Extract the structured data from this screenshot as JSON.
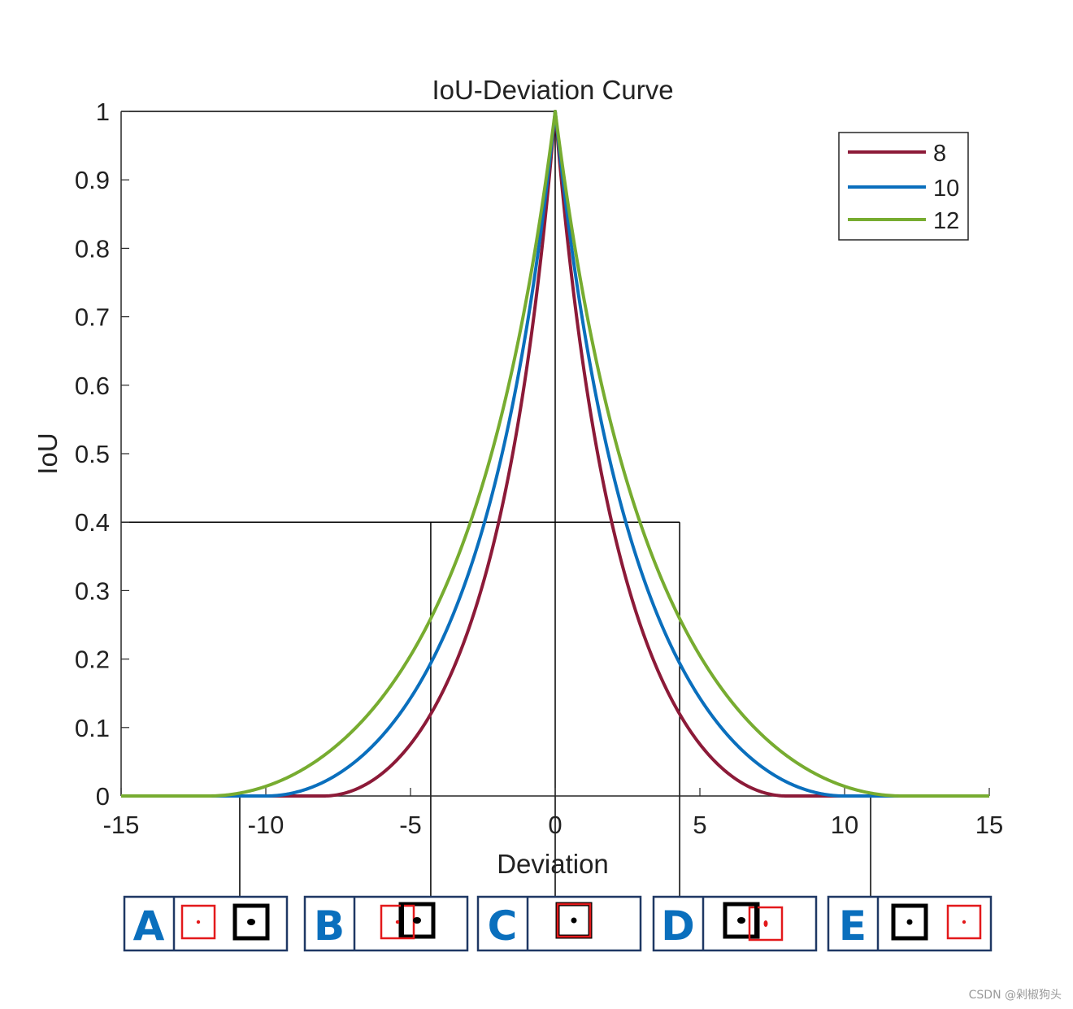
{
  "chart_data": {
    "type": "line",
    "title": "IoU-Deviation Curve",
    "xlabel": "Deviation",
    "ylabel": "IoU",
    "xlim": [
      -15,
      15
    ],
    "ylim": [
      0,
      1
    ],
    "xticks": [
      -15,
      -10,
      -5,
      0,
      5,
      10,
      15
    ],
    "xtick_labels": [
      "-15",
      "-10",
      "-5",
      "0",
      "5",
      "10",
      "15"
    ],
    "yticks": [
      0,
      0.1,
      0.2,
      0.3,
      0.4,
      0.5,
      0.6,
      0.7,
      0.8,
      0.9,
      1
    ],
    "ytick_labels": [
      "0",
      "0.1",
      "0.2",
      "0.3",
      "0.4",
      "0.5",
      "0.6",
      "0.7",
      "0.8",
      "0.9",
      "1"
    ],
    "legend_position": "top-right",
    "series": [
      {
        "name": "8",
        "box_size": 8,
        "color": "#8c1a38"
      },
      {
        "name": "10",
        "box_size": 10,
        "color": "#0a6fbd"
      },
      {
        "name": "12",
        "box_size": 12,
        "color": "#77ac30"
      }
    ],
    "reference_lines": {
      "top_iou": 1,
      "threshold_iou": 0.4,
      "threshold_deviation": [
        -4.3,
        4.3
      ],
      "center_deviation": 0
    },
    "annotations": [
      {
        "letter": "A",
        "deviation": -10.9
      },
      {
        "letter": "B",
        "deviation": -4.3
      },
      {
        "letter": "C",
        "deviation": 0
      },
      {
        "letter": "D",
        "deviation": 4.3
      },
      {
        "letter": "E",
        "deviation": 10.9
      }
    ]
  },
  "watermark": "CSDN @剁椒狗头"
}
